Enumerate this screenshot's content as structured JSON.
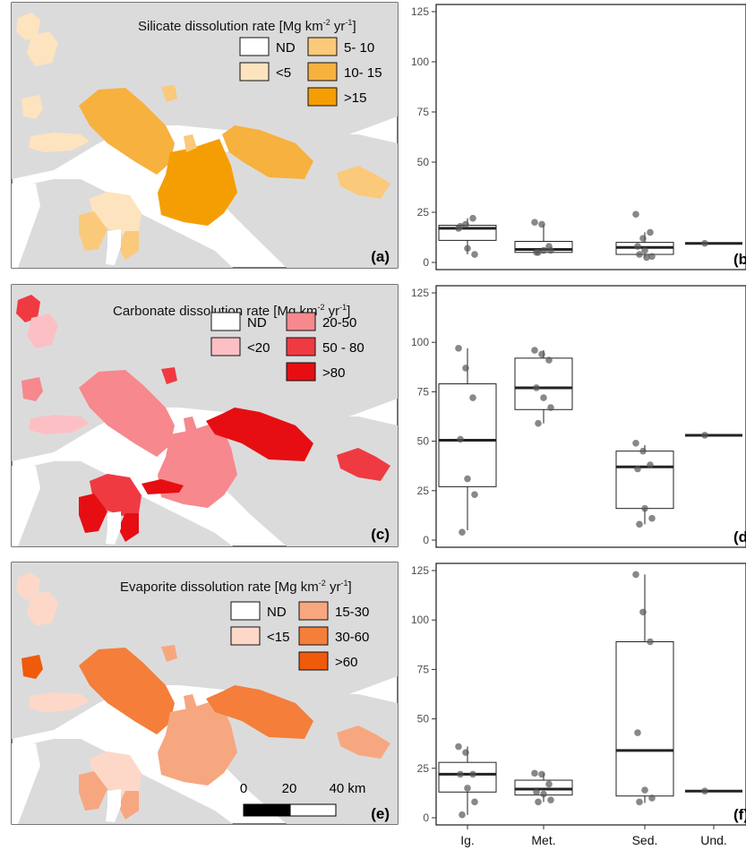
{
  "panels": {
    "a": {
      "letter": "(a)",
      "legend_title": "Silicate dissolution rate [Mg km",
      "legend_sup": "-2",
      "legend_mid": " yr",
      "legend_sup2": "-1",
      "legend_end": "]",
      "classes": [
        {
          "label": "ND",
          "color": "#ffffff"
        },
        {
          "label": "<5",
          "color": "#fde4be"
        },
        {
          "label": "5- 10",
          "color": "#fac97a"
        },
        {
          "label": "10- 15",
          "color": "#f7b13e"
        },
        {
          "label": ">15",
          "color": "#f59e04"
        }
      ]
    },
    "c": {
      "letter": "(c)",
      "legend_title": "Carbonate dissolution rate [Mg km",
      "legend_sup": "-2",
      "legend_mid": " yr",
      "legend_sup2": "-1",
      "legend_end": "]",
      "classes": [
        {
          "label": "ND",
          "color": "#ffffff"
        },
        {
          "label": "<20",
          "color": "#fcc0c4"
        },
        {
          "label": "20-50",
          "color": "#f7888d"
        },
        {
          "label": "50 - 80",
          "color": "#ef3a42"
        },
        {
          "label": ">80",
          "color": "#e60e12"
        }
      ]
    },
    "e": {
      "letter": "(e)",
      "legend_title": "Evaporite dissolution rate [Mg km",
      "legend_sup": "-2",
      "legend_mid": " yr",
      "legend_sup2": "-1",
      "legend_end": "]",
      "classes": [
        {
          "label": "ND",
          "color": "#ffffff"
        },
        {
          "label": "<15",
          "color": "#fdd8c9"
        },
        {
          "label": "15-30",
          "color": "#f7a77f"
        },
        {
          "label": "30-60",
          "color": "#f47e3a"
        },
        {
          "label": ">60",
          "color": "#ef5a0b"
        }
      ],
      "scalebar": {
        "ticks": [
          "0",
          "20",
          "40 km"
        ]
      }
    }
  },
  "colors": {
    "background_land": "#dcdbdc",
    "outline": "#1a1a1a"
  },
  "chart_data": [
    {
      "type": "box",
      "panel_label": "(b)",
      "categories": [
        "Ig.",
        "Met.",
        "Sed.",
        "Und."
      ],
      "ylim": [
        0,
        125
      ],
      "yticks": [
        0,
        25,
        50,
        75,
        100,
        125
      ],
      "boxes": [
        {
          "q1": 11,
          "median": 17,
          "q3": 18.5,
          "lo": 4,
          "hi": 22
        },
        {
          "q1": 5,
          "median": 6.5,
          "q3": 10.5,
          "lo": 4.5,
          "hi": 19
        },
        {
          "q1": 4,
          "median": 7.5,
          "q3": 10,
          "lo": 2.5,
          "hi": 15
        },
        {
          "q1": 9.5,
          "median": 9.5,
          "q3": 9.5,
          "lo": 9.5,
          "hi": 9.5
        }
      ],
      "points": [
        [
          17,
          19,
          22,
          18,
          7,
          4
        ],
        [
          20,
          19,
          8,
          5,
          6,
          6,
          5
        ],
        [
          24,
          12,
          15,
          8,
          6,
          3,
          4,
          2.5
        ],
        [
          9.5
        ]
      ]
    },
    {
      "type": "box",
      "panel_label": "(d)",
      "categories": [
        "Ig.",
        "Met.",
        "Sed.",
        "Und."
      ],
      "ylim": [
        0,
        125
      ],
      "yticks": [
        0,
        25,
        50,
        75,
        100,
        125
      ],
      "boxes": [
        {
          "q1": 27,
          "median": 50.5,
          "q3": 79,
          "lo": 5,
          "hi": 97
        },
        {
          "q1": 66,
          "median": 77,
          "q3": 92,
          "lo": 59,
          "hi": 96
        },
        {
          "q1": 16,
          "median": 37,
          "q3": 45,
          "lo": 8,
          "hi": 48
        },
        {
          "q1": 53,
          "median": 53,
          "q3": 53,
          "lo": 53,
          "hi": 53
        }
      ],
      "points": [
        [
          97,
          87,
          72,
          51,
          31,
          23,
          4
        ],
        [
          96,
          94,
          91,
          77,
          72,
          67,
          59
        ],
        [
          49,
          45,
          38,
          36,
          16,
          11,
          8
        ],
        [
          53
        ]
      ]
    },
    {
      "type": "box",
      "panel_label": "(f)",
      "categories": [
        "Ig.",
        "Met.",
        "Sed.",
        "Und."
      ],
      "ylim": [
        0,
        125
      ],
      "yticks": [
        0,
        25,
        50,
        75,
        100,
        125
      ],
      "boxes": [
        {
          "q1": 13,
          "median": 22,
          "q3": 28,
          "lo": 1.5,
          "hi": 36
        },
        {
          "q1": 11.5,
          "median": 14.5,
          "q3": 19,
          "lo": 8,
          "hi": 22.5
        },
        {
          "q1": 11,
          "median": 34,
          "q3": 89,
          "lo": 7.5,
          "hi": 123
        },
        {
          "q1": 13.5,
          "median": 13.5,
          "q3": 13.5,
          "lo": 13.5,
          "hi": 13.5
        }
      ],
      "points": [
        [
          36,
          33,
          22,
          22,
          15,
          8,
          1.5
        ],
        [
          22.5,
          22,
          17,
          13,
          12,
          9,
          8
        ],
        [
          123,
          104,
          89,
          43,
          14,
          10,
          8
        ],
        [
          13.5
        ]
      ]
    }
  ]
}
